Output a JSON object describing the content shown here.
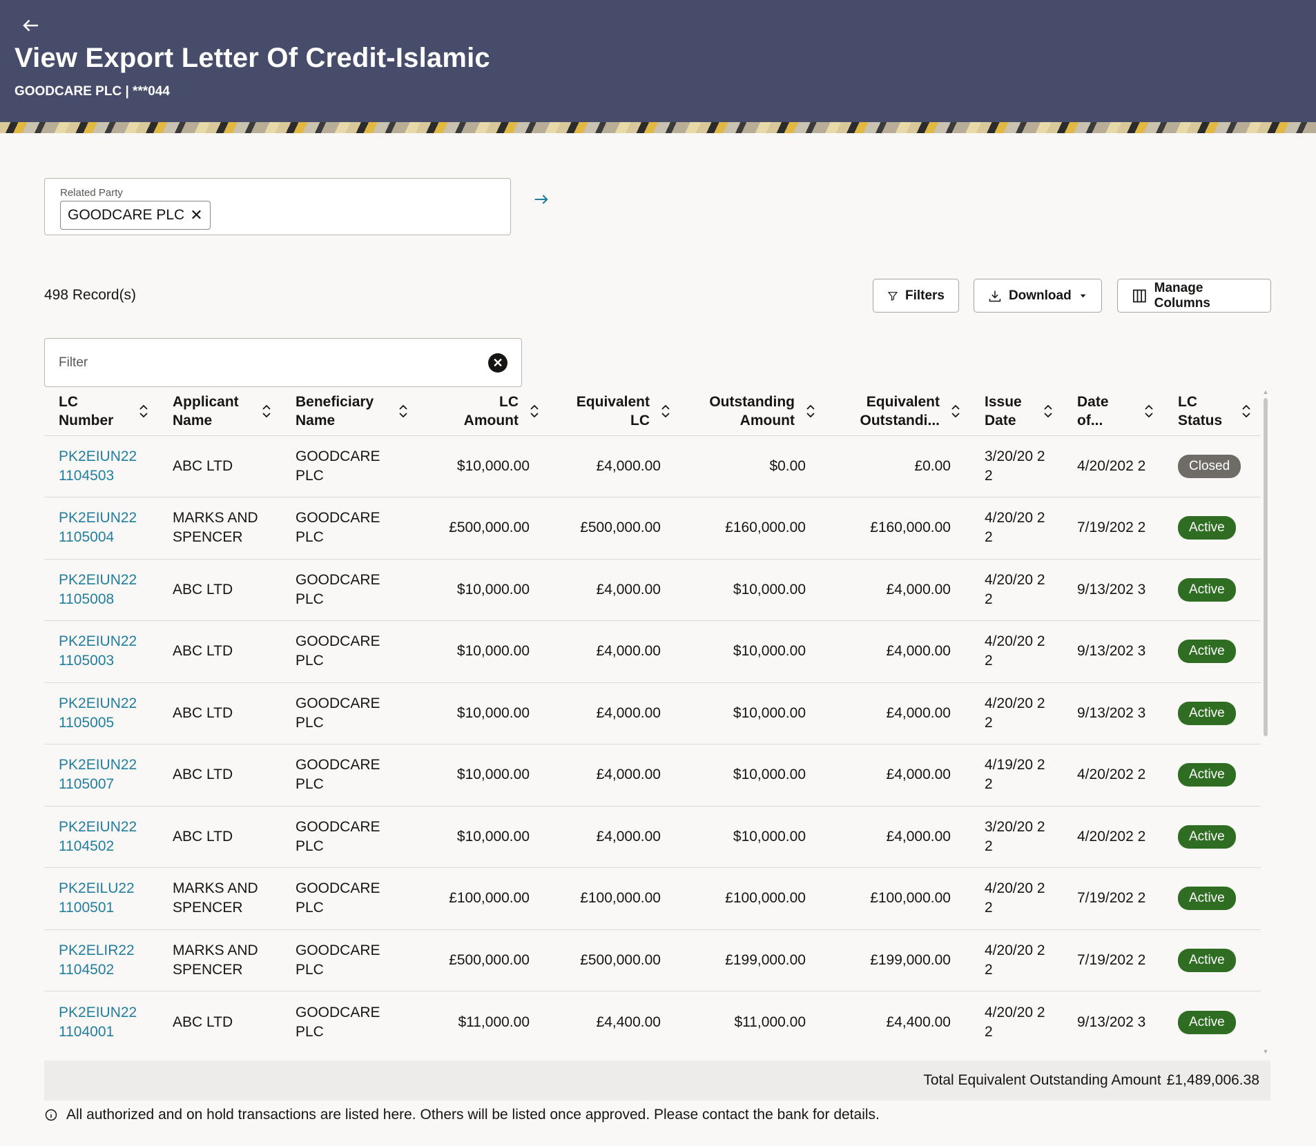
{
  "header": {
    "title": "View Export Letter Of Credit-Islamic",
    "subtitle": "GOODCARE PLC | ***044",
    "back_icon": "arrow-left-icon"
  },
  "related_party": {
    "label": "Related Party",
    "chip": "GOODCARE PLC",
    "remove_symbol": "✕",
    "go_icon": "arrow-right-icon"
  },
  "toolbar": {
    "records": "498 Record(s)",
    "filters_label": "Filters",
    "download_label": "Download",
    "manage_columns_label": "Manage Columns"
  },
  "filter": {
    "placeholder": "Filter",
    "clear_symbol": "✕"
  },
  "columns": [
    {
      "line1": "LC",
      "line2": "Number"
    },
    {
      "line1": "Applicant",
      "line2": "Name"
    },
    {
      "line1": "Beneficiary",
      "line2": "Name"
    },
    {
      "line1": "LC",
      "line2": "Amount"
    },
    {
      "line1": "Equivalent",
      "line2": "LC"
    },
    {
      "line1": "Outstanding",
      "line2": "Amount"
    },
    {
      "line1": "Equivalent",
      "line2": "Outstandi..."
    },
    {
      "line1": "Issue",
      "line2": "Date"
    },
    {
      "line1": "Date",
      "line2": "of..."
    },
    {
      "line1": "LC",
      "line2": "Status"
    }
  ],
  "rows": [
    {
      "lc_number": "PK2EIUN22 1104503",
      "applicant": "ABC LTD",
      "beneficiary": "GOODCARE PLC",
      "lc_amount": "$10,000.00",
      "equivalent_lc": "£4,000.00",
      "outstanding": "$0.00",
      "equivalent_outstanding": "£0.00",
      "issue_date": "3/20/20 22",
      "date_of": "4/20/202 2",
      "status": "Closed"
    },
    {
      "lc_number": "PK2EIUN22 1105004",
      "applicant": "MARKS AND SPENCER",
      "beneficiary": "GOODCARE PLC",
      "lc_amount": "£500,000.00",
      "equivalent_lc": "£500,000.00",
      "outstanding": "£160,000.00",
      "equivalent_outstanding": "£160,000.00",
      "issue_date": "4/20/20 22",
      "date_of": "7/19/202 2",
      "status": "Active"
    },
    {
      "lc_number": "PK2EIUN22 1105008",
      "applicant": "ABC LTD",
      "beneficiary": "GOODCARE PLC",
      "lc_amount": "$10,000.00",
      "equivalent_lc": "£4,000.00",
      "outstanding": "$10,000.00",
      "equivalent_outstanding": "£4,000.00",
      "issue_date": "4/20/20 22",
      "date_of": "9/13/202 3",
      "status": "Active"
    },
    {
      "lc_number": "PK2EIUN22 1105003",
      "applicant": "ABC LTD",
      "beneficiary": "GOODCARE PLC",
      "lc_amount": "$10,000.00",
      "equivalent_lc": "£4,000.00",
      "outstanding": "$10,000.00",
      "equivalent_outstanding": "£4,000.00",
      "issue_date": "4/20/20 22",
      "date_of": "9/13/202 3",
      "status": "Active"
    },
    {
      "lc_number": "PK2EIUN22 1105005",
      "applicant": "ABC LTD",
      "beneficiary": "GOODCARE PLC",
      "lc_amount": "$10,000.00",
      "equivalent_lc": "£4,000.00",
      "outstanding": "$10,000.00",
      "equivalent_outstanding": "£4,000.00",
      "issue_date": "4/20/20 22",
      "date_of": "9/13/202 3",
      "status": "Active"
    },
    {
      "lc_number": "PK2EIUN22 1105007",
      "applicant": "ABC LTD",
      "beneficiary": "GOODCARE PLC",
      "lc_amount": "$10,000.00",
      "equivalent_lc": "£4,000.00",
      "outstanding": "$10,000.00",
      "equivalent_outstanding": "£4,000.00",
      "issue_date": "4/19/20 22",
      "date_of": "4/20/202 2",
      "status": "Active"
    },
    {
      "lc_number": "PK2EIUN22 1104502",
      "applicant": "ABC LTD",
      "beneficiary": "GOODCARE PLC",
      "lc_amount": "$10,000.00",
      "equivalent_lc": "£4,000.00",
      "outstanding": "$10,000.00",
      "equivalent_outstanding": "£4,000.00",
      "issue_date": "3/20/20 22",
      "date_of": "4/20/202 2",
      "status": "Active"
    },
    {
      "lc_number": "PK2EILU22 1100501",
      "applicant": "MARKS AND SPENCER",
      "beneficiary": "GOODCARE PLC",
      "lc_amount": "£100,000.00",
      "equivalent_lc": "£100,000.00",
      "outstanding": "£100,000.00",
      "equivalent_outstanding": "£100,000.00",
      "issue_date": "4/20/20 22",
      "date_of": "7/19/202 2",
      "status": "Active"
    },
    {
      "lc_number": "PK2ELIR22 1104502",
      "applicant": "MARKS AND SPENCER",
      "beneficiary": "GOODCARE PLC",
      "lc_amount": "£500,000.00",
      "equivalent_lc": "£500,000.00",
      "outstanding": "£199,000.00",
      "equivalent_outstanding": "£199,000.00",
      "issue_date": "4/20/20 22",
      "date_of": "7/19/202 2",
      "status": "Active"
    },
    {
      "lc_number": "PK2EIUN22 1104001",
      "applicant": "ABC LTD",
      "beneficiary": "GOODCARE PLC",
      "lc_amount": "$11,000.00",
      "equivalent_lc": "£4,400.00",
      "outstanding": "$11,000.00",
      "equivalent_outstanding": "£4,400.00",
      "issue_date": "4/20/20 22",
      "date_of": "9/13/202 3",
      "status": "Active"
    }
  ],
  "total": {
    "label": "Total Equivalent Outstanding Amount",
    "value": "£1,489,006.38"
  },
  "note": "All authorized and on hold transactions are listed here. Others will be listed once approved. Please contact the bank for details.",
  "colors": {
    "header_bg": "#474c6a",
    "link": "#227e9e",
    "active_badge": "#2f6e22",
    "closed_badge": "#6f6c68"
  }
}
